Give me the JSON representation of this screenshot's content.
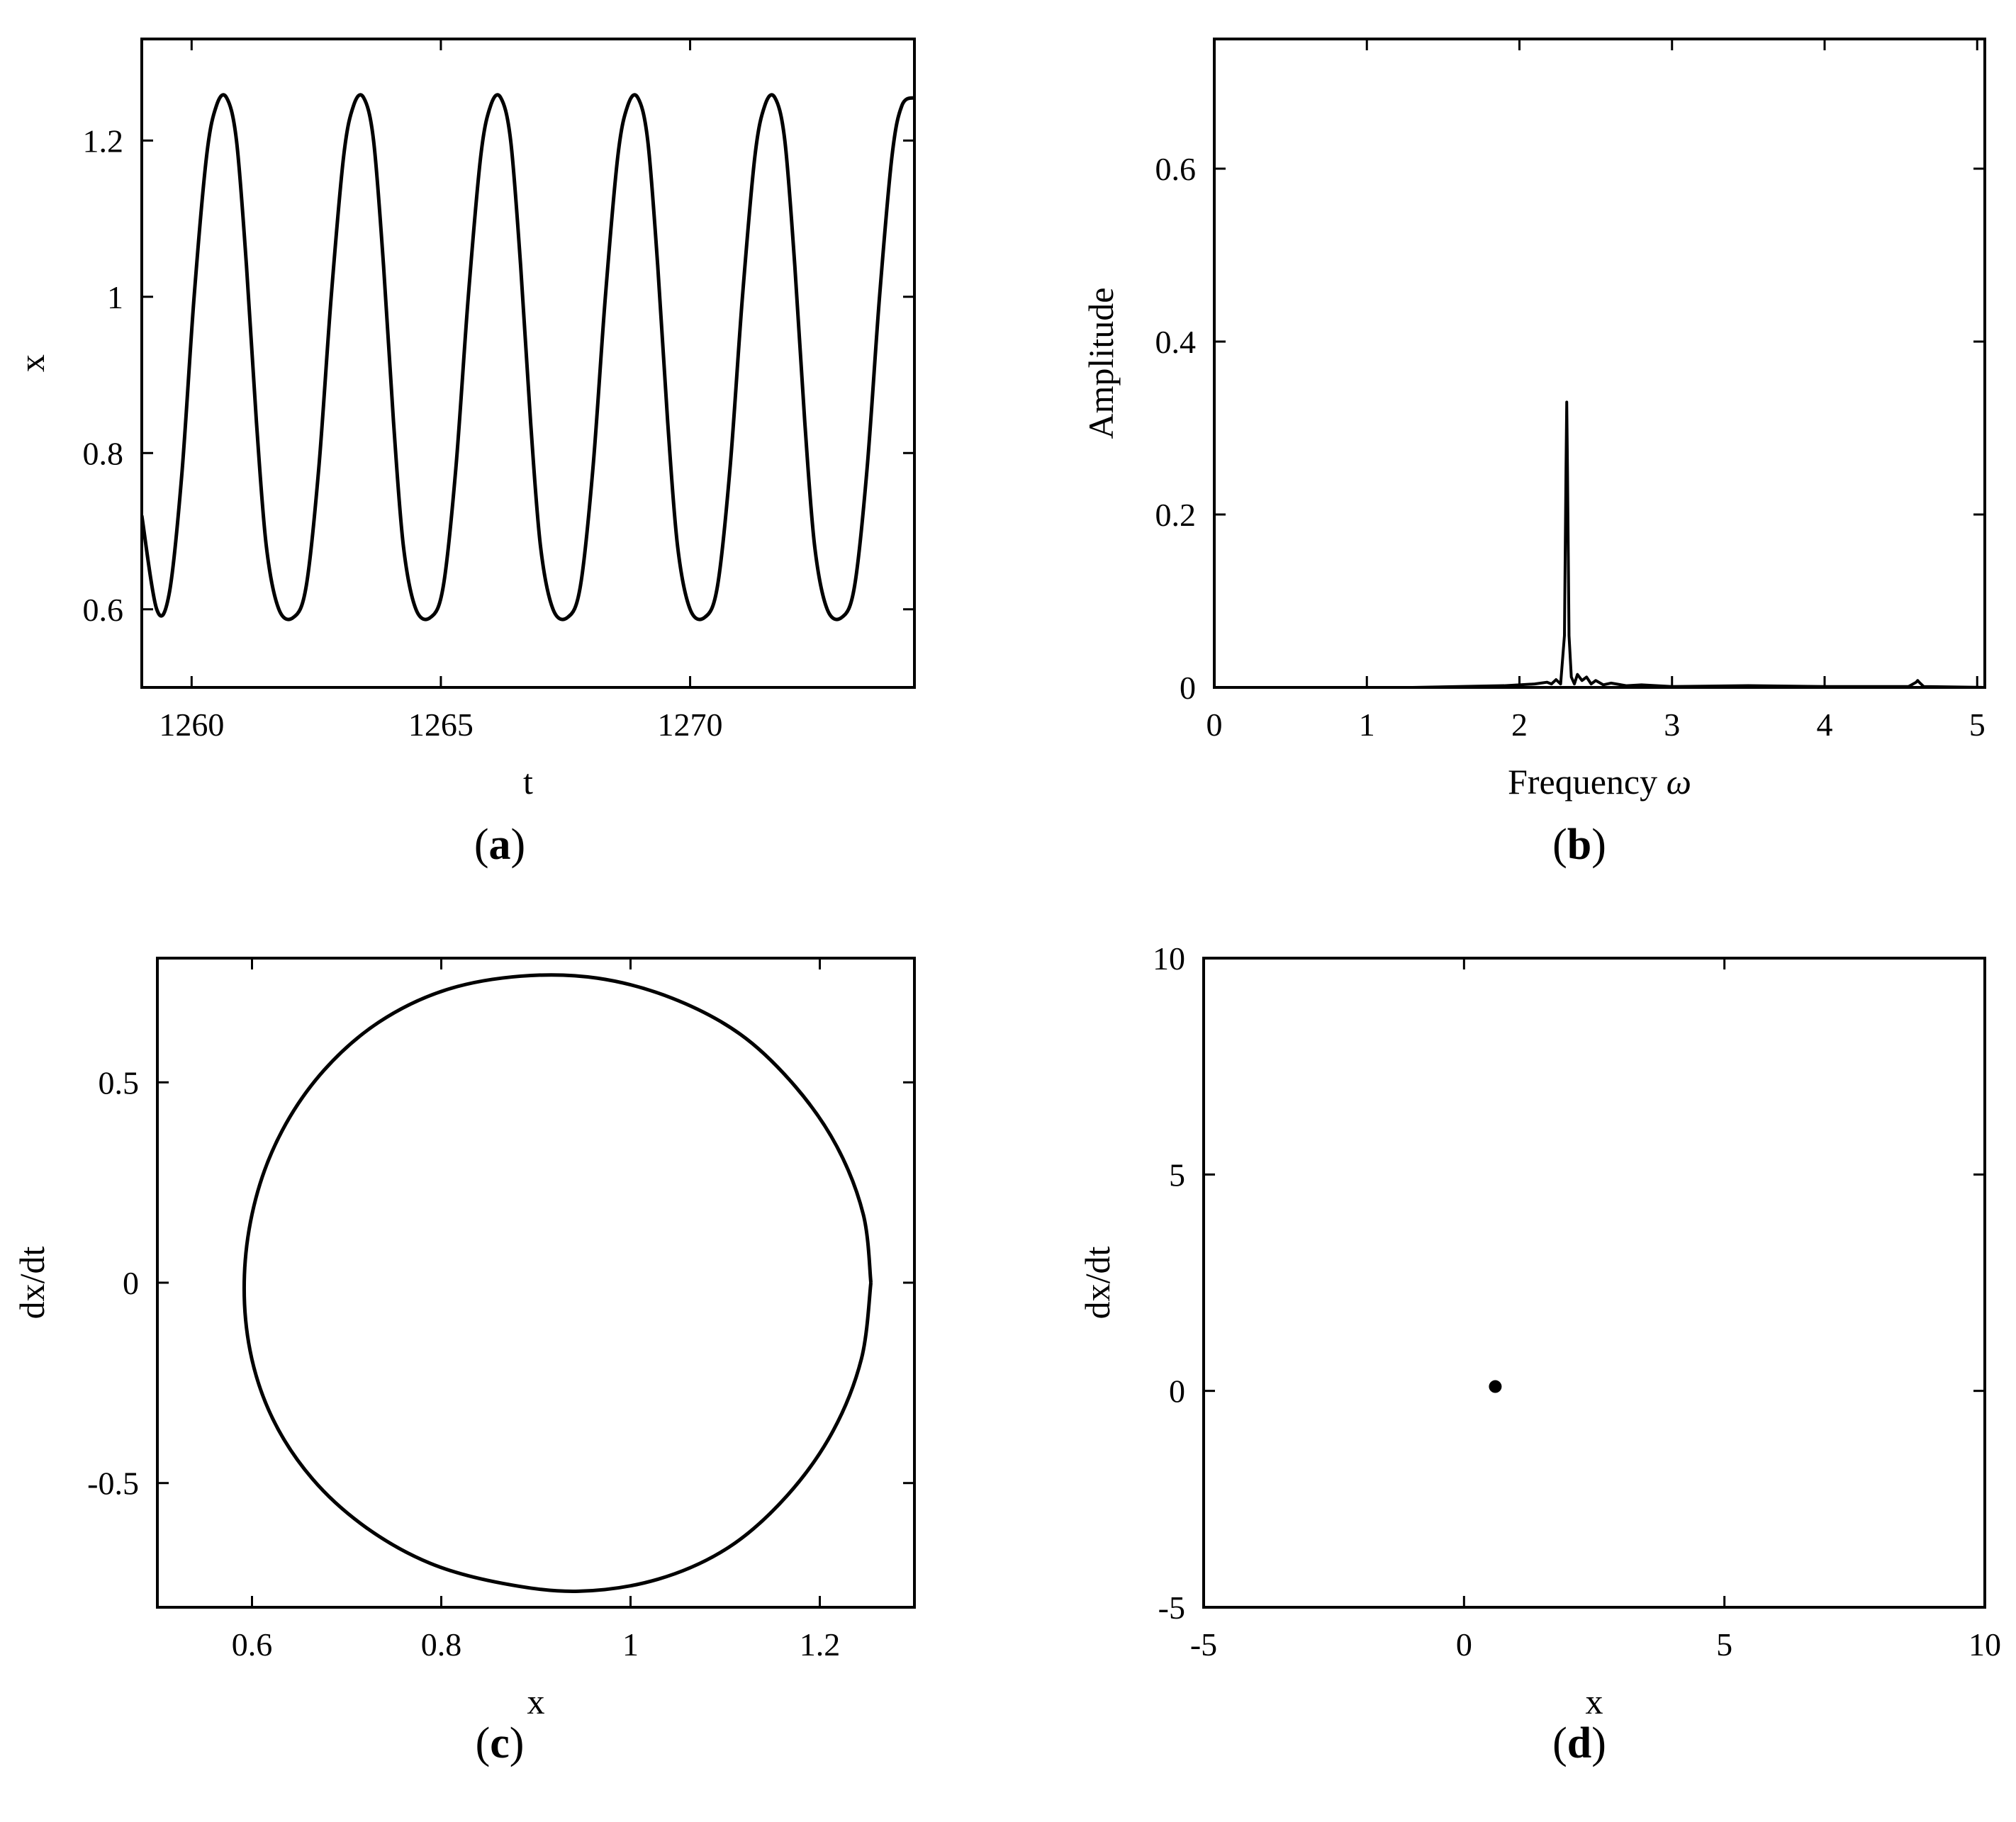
{
  "chart_data": [
    {
      "id": "a",
      "type": "line",
      "panel_label": "(a)",
      "panel_letter": "a",
      "xlabel": "t",
      "ylabel": "x",
      "xlim": [
        1259,
        1274.5
      ],
      "ylim": [
        0.5,
        1.33
      ],
      "xticks": [
        1260,
        1265,
        1270
      ],
      "yticks": [
        0.6,
        0.8,
        1,
        1.2
      ],
      "ytick_labels": [
        "0.6",
        "0.8",
        "1",
        "1.2"
      ],
      "grid": false,
      "series": [
        {
          "x": [
            1259.0,
            1259.3,
            1259.55,
            1259.8,
            1260.05,
            1260.3,
            1260.5,
            1260.7,
            1260.9,
            1261.1,
            1261.3,
            1261.5,
            1261.75,
            1262.05,
            1262.3,
            1262.55,
            1262.8,
            1263.05,
            1263.25,
            1263.45,
            1263.65,
            1263.85,
            1264.05,
            1264.25,
            1264.5,
            1264.8,
            1265.05,
            1265.3,
            1265.55,
            1265.8,
            1266.0,
            1266.2,
            1266.4,
            1266.6,
            1266.8,
            1267.0,
            1267.25,
            1267.55,
            1267.8,
            1268.05,
            1268.3,
            1268.55,
            1268.75,
            1268.95,
            1269.15,
            1269.35,
            1269.55,
            1269.75,
            1270.0,
            1270.3,
            1270.55,
            1270.8,
            1271.05,
            1271.3,
            1271.5,
            1271.7,
            1271.9,
            1272.1,
            1272.3,
            1272.5,
            1272.75,
            1273.05,
            1273.3,
            1273.55,
            1273.8,
            1274.05,
            1274.25,
            1274.5
          ],
          "y": [
            0.72,
            0.6,
            0.62,
            0.77,
            1.0,
            1.18,
            1.245,
            1.255,
            1.2,
            1.04,
            0.84,
            0.68,
            0.6,
            0.59,
            0.63,
            0.78,
            1.0,
            1.18,
            1.245,
            1.255,
            1.2,
            1.04,
            0.84,
            0.68,
            0.6,
            0.59,
            0.63,
            0.78,
            1.0,
            1.18,
            1.245,
            1.255,
            1.2,
            1.04,
            0.84,
            0.68,
            0.6,
            0.59,
            0.63,
            0.78,
            1.0,
            1.18,
            1.245,
            1.255,
            1.2,
            1.04,
            0.84,
            0.68,
            0.6,
            0.59,
            0.63,
            0.78,
            1.0,
            1.18,
            1.245,
            1.255,
            1.2,
            1.04,
            0.84,
            0.68,
            0.6,
            0.59,
            0.63,
            0.78,
            1.0,
            1.18,
            1.245,
            1.255
          ]
        }
      ]
    },
    {
      "id": "b",
      "type": "line",
      "panel_label": "(b)",
      "panel_letter": "b",
      "xlabel": "Frequency ",
      "xlabel_symbol": "ω",
      "ylabel": "Amplitude",
      "xlim": [
        0,
        5.05
      ],
      "ylim": [
        0,
        0.75
      ],
      "xticks": [
        0,
        1,
        2,
        3,
        4,
        5
      ],
      "yticks": [
        0,
        0.2,
        0.4,
        0.6
      ],
      "ytick_labels": [
        "0",
        "0.2",
        "0.4",
        "0.6"
      ],
      "grid": false,
      "series": [
        {
          "x": [
            0.0,
            1.3,
            1.9,
            2.1,
            2.18,
            2.21,
            2.24,
            2.27,
            2.295,
            2.305,
            2.31,
            2.315,
            2.325,
            2.34,
            2.36,
            2.38,
            2.41,
            2.44,
            2.47,
            2.5,
            2.55,
            2.6,
            2.7,
            2.8,
            3.0,
            3.5,
            4.0,
            4.55,
            4.6,
            4.61,
            4.62,
            4.65,
            5.05
          ],
          "y": [
            0.0,
            0.0,
            0.002,
            0.004,
            0.006,
            0.004,
            0.009,
            0.004,
            0.06,
            0.25,
            0.33,
            0.25,
            0.06,
            0.012,
            0.004,
            0.015,
            0.008,
            0.012,
            0.004,
            0.008,
            0.003,
            0.005,
            0.002,
            0.003,
            0.001,
            0.002,
            0.001,
            0.001,
            0.006,
            0.008,
            0.006,
            0.001,
            0.0
          ]
        }
      ]
    },
    {
      "id": "c",
      "type": "line",
      "panel_label": "(c)",
      "panel_letter": "c",
      "xlabel": "x",
      "ylabel": "dx/dt",
      "xlim": [
        0.5,
        1.3
      ],
      "ylim": [
        -0.81,
        0.81
      ],
      "xticks": [
        0.6,
        0.8,
        1,
        1.2
      ],
      "xtick_labels": [
        "0.6",
        "0.8",
        "1",
        "1.2"
      ],
      "yticks": [
        -0.5,
        0,
        0.5
      ],
      "ytick_labels": [
        "-0.5",
        "0",
        "0.5"
      ],
      "grid": false,
      "series": [
        {
          "x": [
            1.254,
            1.244,
            1.214,
            1.166,
            1.104,
            1.029,
            0.945,
            0.864,
            0.788,
            0.72,
            0.664,
            0.622,
            0.598,
            0.592,
            0.604,
            0.632,
            0.676,
            0.734,
            0.804,
            0.884,
            0.965,
            1.044,
            1.116,
            1.174,
            1.218,
            1.246,
            1.254
          ],
          "y": [
            0.0,
            -0.19,
            -0.37,
            -0.53,
            -0.66,
            -0.74,
            -0.77,
            -0.75,
            -0.7,
            -0.61,
            -0.49,
            -0.34,
            -0.17,
            0.02,
            0.21,
            0.38,
            0.53,
            0.65,
            0.73,
            0.765,
            0.76,
            0.71,
            0.62,
            0.49,
            0.34,
            0.17,
            0.0
          ]
        }
      ]
    },
    {
      "id": "d",
      "type": "scatter",
      "panel_label": "(d)",
      "panel_letter": "d",
      "xlabel": "x",
      "ylabel": "dx/dt",
      "xlim": [
        -5,
        10
      ],
      "ylim": [
        -5,
        10
      ],
      "xticks": [
        -5,
        0,
        5,
        10
      ],
      "yticks": [
        -5,
        0,
        5,
        10
      ],
      "grid": false,
      "series": [
        {
          "x": [
            0.6
          ],
          "y": [
            0.1
          ]
        }
      ]
    }
  ]
}
